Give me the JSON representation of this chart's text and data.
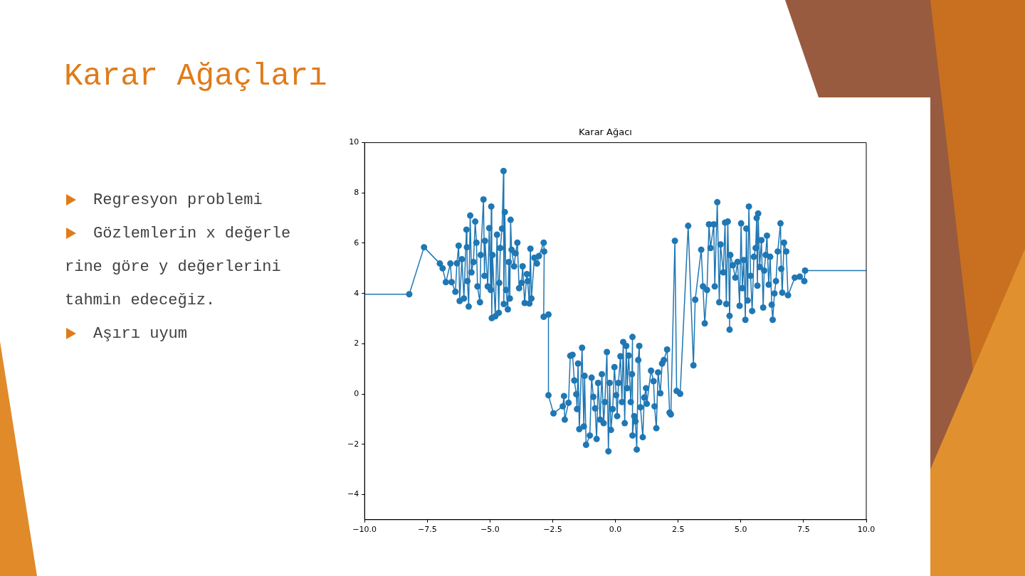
{
  "chart_data": {
    "type": "scatter",
    "title": "Karar Ağacı",
    "annotations": [
      "Karar Ağaçları",
      "Regresyon problemi",
      "Gözlemlerin x değerlerine göre y değerlerini tahmin edeceğiz.",
      "Aşırı uyum"
    ],
    "xlim": [
      -10,
      10
    ],
    "ylim": [
      -5,
      10
    ],
    "xticks": [
      {
        "value": -10,
        "label": "−10.0"
      },
      {
        "value": -7.5,
        "label": "−7.5"
      },
      {
        "value": -5,
        "label": "−5.0"
      },
      {
        "value": -2.5,
        "label": "−2.5"
      },
      {
        "value": 0,
        "label": "0.0"
      },
      2.5,
      {
        "value": 5,
        "label": "5.0"
      },
      7.5,
      {
        "value": 10,
        "label": "10.0"
      }
    ],
    "yticks": [
      {
        "value": -4,
        "label": "−4"
      },
      {
        "value": -2,
        "label": "−2"
      },
      0,
      2,
      4,
      6,
      8,
      10
    ],
    "grid": false,
    "legend": false,
    "series": [
      {
        "type": "scatter",
        "color": "#1f77b4",
        "marker": "circle",
        "x": [
          -8.22,
          -7.63,
          -7.0,
          -6.89,
          -6.76,
          -6.58,
          -6.53,
          -6.38,
          -6.32,
          -6.25,
          -6.21,
          -6.12,
          -6.04,
          -5.94,
          -5.92,
          -5.9,
          -5.85,
          -5.79,
          -5.74,
          -5.66,
          -5.59,
          -5.54,
          -5.5,
          -5.4,
          -5.37,
          -5.26,
          -5.22,
          -5.2,
          -5.09,
          -5.03,
          -4.97,
          -4.95,
          -4.93,
          -4.9,
          -4.79,
          -4.72,
          -4.65,
          -4.63,
          -4.59,
          -4.52,
          -4.46,
          -4.45,
          -4.41,
          -4.36,
          -4.29,
          -4.25,
          -4.21,
          -4.18,
          -4.14,
          -4.04,
          -3.98,
          -3.91,
          -3.84,
          -3.74,
          -3.7,
          -3.62,
          -3.53,
          -3.5,
          -3.43,
          -3.39,
          -3.35,
          -3.23,
          -3.13,
          -3.05,
          -2.86,
          -2.84,
          -2.86,
          -2.67,
          -2.67,
          -2.47,
          -2.1,
          -2.05,
          -2.02,
          -1.87,
          -1.8,
          -1.71,
          -1.64,
          -1.56,
          -1.53,
          -1.49,
          -1.44,
          -1.33,
          -1.26,
          -1.23,
          -1.17,
          -1.02,
          -0.95,
          -0.88,
          -0.81,
          -0.75,
          -0.69,
          -0.61,
          -0.54,
          -0.47,
          -0.42,
          -0.34,
          -0.28,
          -0.23,
          -0.18,
          -0.11,
          -0.04,
          0.03,
          0.07,
          0.12,
          0.2,
          0.26,
          0.31,
          0.37,
          0.43,
          0.47,
          0.53,
          0.61,
          0.66,
          0.68,
          0.68,
          0.75,
          0.8,
          0.85,
          0.91,
          0.95,
          1.0,
          1.09,
          1.15,
          1.22,
          1.25,
          1.42,
          1.52,
          1.56,
          1.63,
          1.7,
          1.79,
          1.86,
          1.93,
          2.06,
          2.16,
          2.21,
          2.37,
          2.44,
          2.58,
          2.9,
          3.11,
          3.18,
          3.42,
          3.49,
          3.56,
          3.65,
          3.73,
          3.79,
          3.92,
          3.96,
          4.06,
          4.14,
          4.19,
          4.3,
          4.37,
          4.42,
          4.48,
          4.55,
          4.55,
          4.58,
          4.68,
          4.78,
          4.87,
          4.95,
          5.01,
          5.06,
          5.12,
          5.18,
          5.22,
          5.27,
          5.32,
          5.39,
          5.45,
          5.52,
          5.59,
          5.63,
          5.66,
          5.69,
          5.75,
          5.82,
          5.89,
          5.93,
          5.99,
          6.04,
          6.11,
          6.17,
          6.23,
          6.27,
          6.34,
          6.4,
          6.47,
          6.58,
          6.61,
          6.65,
          6.72,
          6.81,
          6.88,
          7.15,
          7.35,
          7.53,
          7.56
        ],
        "values": [
          3.97,
          5.84,
          5.19,
          5.0,
          4.45,
          5.19,
          4.45,
          4.07,
          5.2,
          5.9,
          3.7,
          5.36,
          3.8,
          6.54,
          5.84,
          4.49,
          3.48,
          7.1,
          4.84,
          5.25,
          6.86,
          6.02,
          4.28,
          3.65,
          5.53,
          7.74,
          4.7,
          6.09,
          4.28,
          6.6,
          4.14,
          7.46,
          3.02,
          5.53,
          3.09,
          6.34,
          3.23,
          4.42,
          5.81,
          6.58,
          8.87,
          3.58,
          7.24,
          4.14,
          3.37,
          5.25,
          3.8,
          6.93,
          5.74,
          5.08,
          5.6,
          6.02,
          4.21,
          4.42,
          5.08,
          3.62,
          4.77,
          4.49,
          3.6,
          5.78,
          3.8,
          5.42,
          5.19,
          5.49,
          6.02,
          5.67,
          3.07,
          3.16,
          -0.05,
          -0.77,
          -0.49,
          -0.08,
          -1.02,
          -0.35,
          1.52,
          1.56,
          0.54,
          -0.01,
          -0.6,
          1.21,
          -1.4,
          1.84,
          -1.29,
          0.72,
          -2.02,
          -1.65,
          0.65,
          -0.11,
          -0.57,
          -1.79,
          0.44,
          -1.02,
          0.79,
          -1.16,
          -0.32,
          1.67,
          -2.28,
          0.44,
          -1.43,
          -0.6,
          1.07,
          -0.05,
          -0.88,
          0.44,
          1.5,
          -0.32,
          2.07,
          -1.16,
          1.91,
          0.23,
          1.53,
          -0.32,
          0.79,
          2.27,
          -1.65,
          -0.88,
          -1.09,
          -2.21,
          1.35,
          1.91,
          -0.53,
          -1.72,
          -0.14,
          0.23,
          -0.39,
          0.93,
          0.51,
          -0.49,
          -1.36,
          0.86,
          0.03,
          1.21,
          1.35,
          1.77,
          -0.74,
          -0.81,
          6.09,
          0.12,
          0.01,
          6.69,
          1.14,
          3.75,
          5.74,
          4.28,
          2.81,
          4.14,
          6.75,
          5.81,
          6.75,
          4.28,
          7.63,
          3.65,
          5.95,
          4.84,
          6.82,
          3.58,
          6.86,
          3.11,
          2.56,
          5.53,
          5.12,
          4.63,
          5.26,
          3.51,
          6.79,
          4.21,
          5.33,
          2.95,
          6.58,
          3.72,
          7.46,
          4.7,
          3.3,
          5.46,
          5.81,
          7.0,
          4.31,
          7.18,
          5.05,
          6.12,
          3.44,
          4.91,
          5.53,
          6.3,
          4.35,
          5.46,
          3.55,
          2.95,
          4.0,
          4.49,
          5.67,
          6.79,
          4.98,
          4.03,
          6.02,
          5.67,
          3.93,
          4.63,
          4.67,
          4.49,
          4.91
        ]
      },
      {
        "type": "line",
        "color": "#1f77b4",
        "marker": "none",
        "line_style": "solid",
        "x": [
          -10,
          -8.22,
          -7.63,
          -7.0,
          -6.89,
          -6.76,
          -6.58,
          -6.53,
          -6.38,
          -6.32,
          -6.25,
          -6.21,
          -6.12,
          -6.04,
          -5.94,
          -5.92,
          -5.9,
          -5.85,
          -5.79,
          -5.74,
          -5.66,
          -5.59,
          -5.54,
          -5.5,
          -5.4,
          -5.37,
          -5.26,
          -5.22,
          -5.2,
          -5.09,
          -5.03,
          -4.97,
          -4.95,
          -4.93,
          -4.9,
          -4.79,
          -4.72,
          -4.65,
          -4.63,
          -4.59,
          -4.52,
          -4.46,
          -4.45,
          -4.41,
          -4.36,
          -4.29,
          -4.25,
          -4.21,
          -4.18,
          -4.14,
          -4.04,
          -3.98,
          -3.91,
          -3.84,
          -3.74,
          -3.7,
          -3.62,
          -3.53,
          -3.5,
          -3.43,
          -3.39,
          -3.35,
          -3.23,
          -3.13,
          -3.05,
          -2.86,
          -2.84,
          -2.86,
          -2.67,
          -2.67,
          -2.47,
          -2.1,
          -2.05,
          -2.02,
          -1.87,
          -1.8,
          -1.71,
          -1.64,
          -1.56,
          -1.53,
          -1.49,
          -1.44,
          -1.33,
          -1.26,
          -1.23,
          -1.17,
          -1.02,
          -0.95,
          -0.88,
          -0.81,
          -0.75,
          -0.69,
          -0.61,
          -0.54,
          -0.47,
          -0.42,
          -0.34,
          -0.28,
          -0.23,
          -0.18,
          -0.11,
          -0.04,
          0.03,
          0.07,
          0.12,
          0.2,
          0.26,
          0.31,
          0.37,
          0.43,
          0.47,
          0.53,
          0.61,
          0.66,
          0.68,
          0.68,
          0.75,
          0.8,
          0.85,
          0.91,
          0.95,
          1.0,
          1.09,
          1.15,
          1.22,
          1.25,
          1.42,
          1.52,
          1.56,
          1.63,
          1.7,
          1.79,
          1.86,
          1.93,
          2.06,
          2.16,
          2.21,
          2.37,
          2.44,
          2.58,
          2.9,
          3.11,
          3.18,
          3.42,
          3.49,
          3.56,
          3.65,
          3.73,
          3.79,
          3.92,
          3.96,
          4.06,
          4.14,
          4.19,
          4.3,
          4.37,
          4.42,
          4.48,
          4.55,
          4.55,
          4.58,
          4.68,
          4.78,
          4.87,
          4.95,
          5.01,
          5.06,
          5.12,
          5.18,
          5.22,
          5.27,
          5.32,
          5.39,
          5.45,
          5.52,
          5.59,
          5.63,
          5.66,
          5.69,
          5.75,
          5.82,
          5.89,
          5.93,
          5.99,
          6.04,
          6.11,
          6.17,
          6.23,
          6.27,
          6.34,
          6.4,
          6.47,
          6.58,
          6.61,
          6.65,
          6.72,
          6.81,
          6.88,
          7.15,
          7.35,
          7.53,
          7.56,
          10
        ],
        "values": [
          3.97,
          3.97,
          5.84,
          5.19,
          5.0,
          4.45,
          5.19,
          4.45,
          4.07,
          5.2,
          5.9,
          3.7,
          5.36,
          3.8,
          6.54,
          5.84,
          4.49,
          3.48,
          7.1,
          4.84,
          5.25,
          6.86,
          6.02,
          4.28,
          3.65,
          5.53,
          7.74,
          4.7,
          6.09,
          4.28,
          6.6,
          4.14,
          7.46,
          3.02,
          5.53,
          3.09,
          6.34,
          3.23,
          4.42,
          5.81,
          6.58,
          8.87,
          3.58,
          7.24,
          4.14,
          3.37,
          5.25,
          3.8,
          6.93,
          5.74,
          5.08,
          5.6,
          6.02,
          4.21,
          4.42,
          5.08,
          3.62,
          4.77,
          4.49,
          3.6,
          5.78,
          3.8,
          5.42,
          5.19,
          5.49,
          6.02,
          5.67,
          3.07,
          3.16,
          -0.05,
          -0.77,
          -0.49,
          -0.08,
          -1.02,
          -0.35,
          1.52,
          1.56,
          0.54,
          -0.01,
          -0.6,
          1.21,
          -1.4,
          1.84,
          -1.29,
          0.72,
          -2.02,
          -1.65,
          0.65,
          -0.11,
          -0.57,
          -1.79,
          0.44,
          -1.02,
          0.79,
          -1.16,
          -0.32,
          1.67,
          -2.28,
          0.44,
          -1.43,
          -0.6,
          1.07,
          -0.05,
          -0.88,
          0.44,
          1.5,
          -0.32,
          2.07,
          -1.16,
          1.91,
          0.23,
          1.53,
          -0.32,
          0.79,
          2.27,
          -1.65,
          -0.88,
          -1.09,
          -2.21,
          1.35,
          1.91,
          -0.53,
          -1.72,
          -0.14,
          0.23,
          -0.39,
          0.93,
          0.51,
          -0.49,
          -1.36,
          0.86,
          0.03,
          1.21,
          1.35,
          1.77,
          -0.74,
          -0.81,
          6.09,
          0.12,
          0.01,
          6.69,
          1.14,
          3.75,
          5.74,
          4.28,
          2.81,
          4.14,
          6.75,
          5.81,
          6.75,
          4.28,
          7.63,
          3.65,
          5.95,
          4.84,
          6.82,
          3.58,
          6.86,
          3.11,
          2.56,
          5.53,
          5.12,
          4.63,
          5.26,
          3.51,
          6.79,
          4.21,
          5.33,
          2.95,
          6.58,
          3.72,
          7.46,
          4.7,
          3.3,
          5.46,
          5.81,
          7.0,
          4.31,
          7.18,
          5.05,
          6.12,
          3.44,
          4.91,
          5.53,
          6.3,
          4.35,
          5.46,
          3.55,
          2.95,
          4.0,
          4.49,
          5.67,
          6.79,
          4.98,
          4.03,
          6.02,
          5.67,
          3.93,
          4.63,
          4.67,
          4.49,
          4.91,
          4.91
        ]
      }
    ]
  }
}
